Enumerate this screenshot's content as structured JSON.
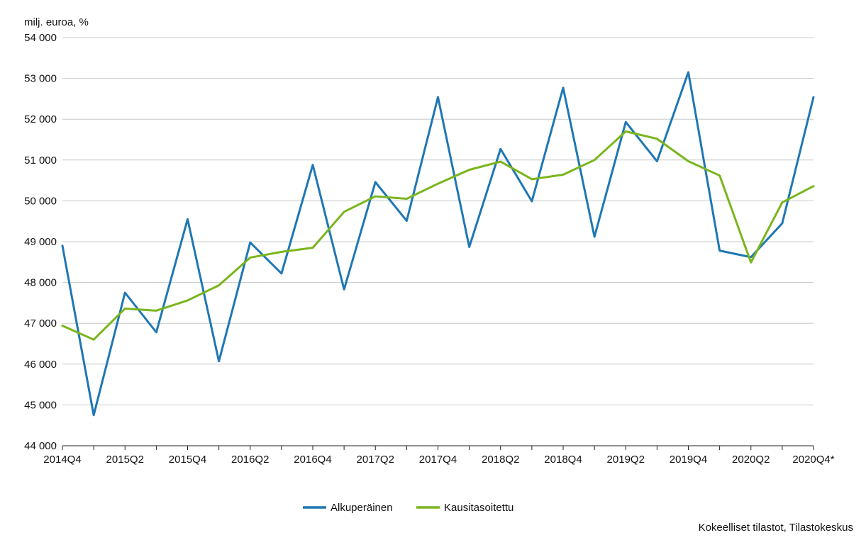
{
  "chart_data": {
    "type": "line",
    "title": "",
    "ylabel": "milj. euroa, %",
    "xlabel": "",
    "source": "Kokeelliset tilastot, Tilastokeskus",
    "ylim": [
      44000,
      54000
    ],
    "y_ticks": [
      44000,
      45000,
      46000,
      47000,
      48000,
      49000,
      50000,
      51000,
      52000,
      53000,
      54000
    ],
    "y_tick_labels": [
      "44 000",
      "45 000",
      "46 000",
      "47 000",
      "48 000",
      "49 000",
      "50 000",
      "51 000",
      "52 000",
      "53 000",
      "54 000"
    ],
    "grid": "horizontal",
    "legend_position": "bottom-center",
    "categories": [
      "2014Q4",
      "2015Q1",
      "2015Q2",
      "2015Q3",
      "2015Q4",
      "2016Q1",
      "2016Q2",
      "2016Q3",
      "2016Q4",
      "2017Q1",
      "2017Q2",
      "2017Q3",
      "2017Q4",
      "2018Q1",
      "2018Q2",
      "2018Q3",
      "2018Q4",
      "2019Q1",
      "2019Q2",
      "2019Q3",
      "2019Q4",
      "2020Q1",
      "2020Q2",
      "2020Q3",
      "2020Q4*"
    ],
    "x_tick_labels": [
      "2014Q4",
      "2015Q2",
      "2015Q4",
      "2016Q2",
      "2016Q4",
      "2017Q2",
      "2017Q4",
      "2018Q2",
      "2018Q4",
      "2019Q2",
      "2019Q4",
      "2020Q2",
      "2020Q4*"
    ],
    "series": [
      {
        "name": "Alkuperäinen",
        "color": "#1f77b4",
        "values": [
          48900,
          44750,
          47750,
          46780,
          49550,
          46070,
          48980,
          48220,
          50880,
          47830,
          50460,
          49510,
          52540,
          48870,
          51270,
          49990,
          52770,
          49120,
          51930,
          50970,
          53150,
          48780,
          48620,
          49450,
          52540
        ]
      },
      {
        "name": "Kausitasoitettu",
        "color": "#7ab51d",
        "values": [
          46940,
          46600,
          47360,
          47310,
          47560,
          47930,
          48610,
          48750,
          48850,
          49730,
          50110,
          50050,
          50420,
          50760,
          50960,
          50530,
          50640,
          51000,
          51700,
          51520,
          50970,
          50620,
          48490,
          49960,
          50360
        ]
      }
    ]
  }
}
